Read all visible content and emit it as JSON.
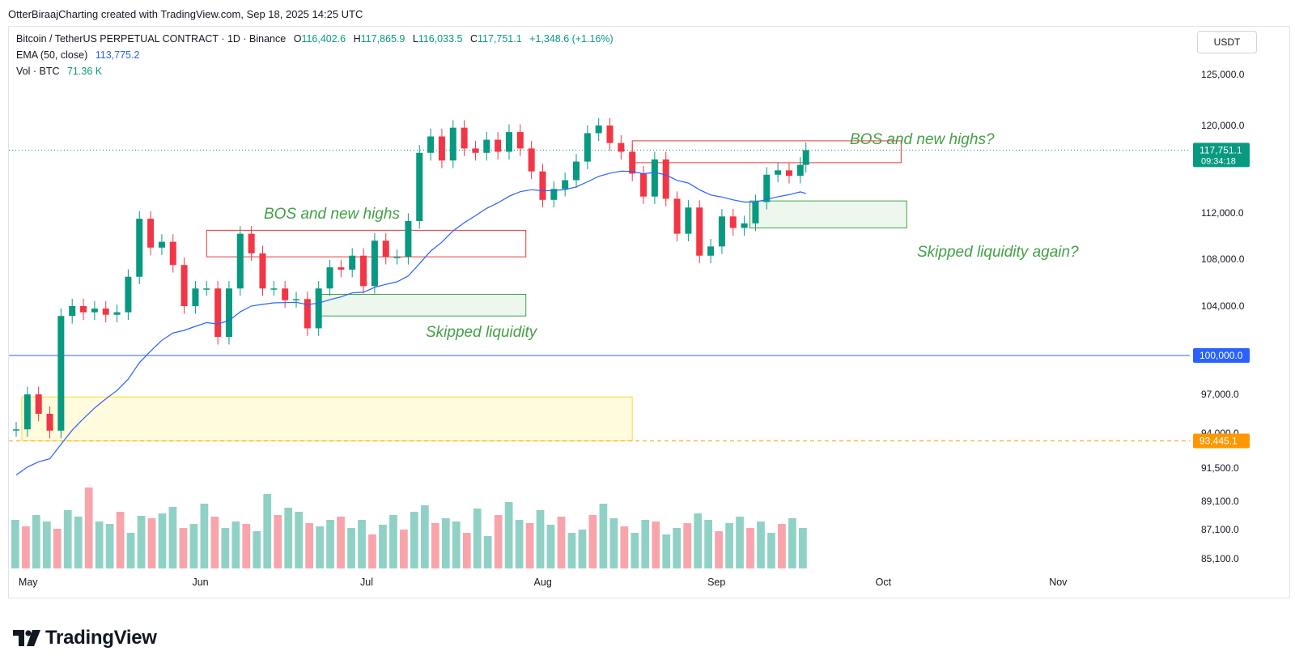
{
  "header": {
    "attribution": "OtterBiraajCharting created with TradingView.com, Sep 18, 2025 14:25 UTC"
  },
  "legend": {
    "symbol": "Bitcoin / TetherUS PERPETUAL CONTRACT · 1D · Binance",
    "open_label": "O",
    "open": "116,402.6",
    "high_label": "H",
    "high": "117,865.9",
    "low_label": "L",
    "low": "116,033.5",
    "close_label": "C",
    "close": "117,751.1",
    "change": "+1,348.6 (+1.16%)",
    "ema_label": "EMA (50, close)",
    "ema_value": "113,775.2",
    "vol_label": "Vol · BTC",
    "vol_value": "71.36 K"
  },
  "currency": "USDT",
  "footer": {
    "brand": "TradingView"
  },
  "chart_data": {
    "type": "candlestick",
    "price_axis_ticks": [
      "125,000.0",
      "120,000.0",
      "112,000.0",
      "108,000.0",
      "104,000.0",
      "97,000.0",
      "94,000.0",
      "91,500.0",
      "89,100.0",
      "87,100.0",
      "85,100.0"
    ],
    "time_axis_labels": [
      "May",
      "Jun",
      "Jul",
      "Aug",
      "Sep",
      "Oct",
      "Nov"
    ],
    "price_badges": [
      {
        "label": "117,751.1",
        "sub": "09:34:18",
        "color": "#089981"
      },
      {
        "label": "100,000.0",
        "color": "#2962ff"
      },
      {
        "label": "93,445.1",
        "color": "#ff9800"
      }
    ],
    "horizontal_levels": [
      {
        "price": 100000,
        "color": "#2962ff",
        "style": "solid"
      },
      {
        "price": 93445.1,
        "color": "#ff9800",
        "style": "dashed"
      },
      {
        "price": 117751.1,
        "color": "#089981",
        "style": "dotted"
      }
    ],
    "annotations": [
      {
        "text": "BOS and new highs",
        "color": "#43a047"
      },
      {
        "text": "Skipped liquidity",
        "color": "#43a047"
      },
      {
        "text": "BOS and new highs?",
        "color": "#43a047"
      },
      {
        "text": "Skipped liquidity again?",
        "color": "#43a047"
      }
    ],
    "zones": [
      {
        "kind": "red",
        "from": "2025-06-03",
        "to": "2025-07-30",
        "high": 110500,
        "low": 108200
      },
      {
        "kind": "green",
        "from": "2025-06-23",
        "to": "2025-07-30",
        "high": 105000,
        "low": 103200
      },
      {
        "kind": "red",
        "from": "2025-08-18",
        "to": "2025-10-05",
        "high": 118600,
        "low": 116600
      },
      {
        "kind": "green",
        "from": "2025-09-08",
        "to": "2025-10-06",
        "high": 113100,
        "low": 110700
      },
      {
        "kind": "yellow",
        "from": "2025-05-01",
        "to": "2025-08-18",
        "high": 96800,
        "low": 93445
      }
    ],
    "candles_ohlc_points": [
      [
        "2025-04-30",
        94300
      ],
      [
        "2025-05-02",
        97000
      ],
      [
        "2025-05-04",
        95500
      ],
      [
        "2025-05-06",
        94200
      ],
      [
        "2025-05-08",
        103200
      ],
      [
        "2025-05-10",
        104000
      ],
      [
        "2025-05-12",
        103500
      ],
      [
        "2025-05-14",
        103800
      ],
      [
        "2025-05-16",
        103300
      ],
      [
        "2025-05-18",
        103500
      ],
      [
        "2025-05-20",
        106500
      ],
      [
        "2025-05-22",
        111500
      ],
      [
        "2025-05-24",
        109000
      ],
      [
        "2025-05-26",
        109500
      ],
      [
        "2025-05-28",
        107500
      ],
      [
        "2025-05-30",
        104000
      ],
      [
        "2025-06-01",
        105500
      ],
      [
        "2025-06-03",
        105500
      ],
      [
        "2025-06-05",
        101500
      ],
      [
        "2025-06-07",
        105500
      ],
      [
        "2025-06-09",
        110200
      ],
      [
        "2025-06-11",
        108500
      ],
      [
        "2025-06-13",
        105500
      ],
      [
        "2025-06-15",
        105500
      ],
      [
        "2025-06-17",
        104500
      ],
      [
        "2025-06-19",
        104600
      ],
      [
        "2025-06-21",
        102200
      ],
      [
        "2025-06-23",
        105500
      ],
      [
        "2025-06-25",
        107300
      ],
      [
        "2025-06-27",
        107100
      ],
      [
        "2025-06-29",
        108300
      ],
      [
        "2025-07-01",
        105700
      ],
      [
        "2025-07-03",
        109600
      ],
      [
        "2025-07-05",
        108200
      ],
      [
        "2025-07-07",
        108200
      ],
      [
        "2025-07-09",
        111300
      ],
      [
        "2025-07-11",
        117500
      ],
      [
        "2025-07-13",
        119000
      ],
      [
        "2025-07-15",
        116800
      ],
      [
        "2025-07-17",
        119800
      ],
      [
        "2025-07-19",
        117900
      ],
      [
        "2025-07-21",
        117500
      ],
      [
        "2025-07-23",
        118700
      ],
      [
        "2025-07-25",
        117600
      ],
      [
        "2025-07-27",
        119400
      ],
      [
        "2025-07-29",
        117900
      ],
      [
        "2025-07-31",
        115800
      ],
      [
        "2025-08-02",
        113200
      ],
      [
        "2025-08-04",
        114200
      ],
      [
        "2025-08-06",
        115000
      ],
      [
        "2025-08-08",
        116700
      ],
      [
        "2025-08-10",
        119300
      ],
      [
        "2025-08-12",
        120000
      ],
      [
        "2025-08-14",
        118400
      ],
      [
        "2025-08-16",
        117600
      ],
      [
        "2025-08-18",
        115600
      ],
      [
        "2025-08-20",
        113500
      ],
      [
        "2025-08-22",
        116900
      ],
      [
        "2025-08-24",
        113300
      ],
      [
        "2025-08-26",
        110200
      ],
      [
        "2025-08-28",
        112500
      ],
      [
        "2025-08-30",
        108300
      ],
      [
        "2025-09-01",
        109100
      ],
      [
        "2025-09-03",
        111700
      ],
      [
        "2025-09-05",
        110700
      ],
      [
        "2025-09-07",
        111100
      ],
      [
        "2025-09-09",
        113000
      ],
      [
        "2025-09-11",
        115500
      ],
      [
        "2025-09-13",
        115900
      ],
      [
        "2025-09-15",
        115400
      ],
      [
        "2025-09-17",
        116400
      ],
      [
        "2025-09-18",
        117751.1
      ]
    ],
    "ema50_label": "EMA (50, close)",
    "ema50_last": 113775.2
  }
}
